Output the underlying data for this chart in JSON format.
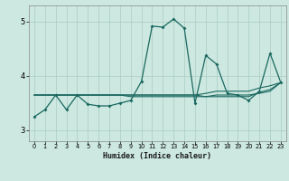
{
  "xlabel": "Humidex (Indice chaleur)",
  "background_color": "#cce8e0",
  "grid_color": "#aaccc4",
  "line_color": "#1a6860",
  "xlim": [
    -0.5,
    23.5
  ],
  "ylim": [
    2.8,
    5.3
  ],
  "yticks": [
    3,
    4,
    5
  ],
  "xticks": [
    0,
    1,
    2,
    3,
    4,
    5,
    6,
    7,
    8,
    9,
    10,
    11,
    12,
    13,
    14,
    15,
    16,
    17,
    18,
    19,
    20,
    21,
    22,
    23
  ],
  "line1_x": [
    0,
    1,
    2,
    3,
    4,
    5,
    6,
    7,
    8,
    9,
    10,
    11,
    12,
    13,
    14,
    15,
    16,
    17,
    18,
    19,
    20,
    21,
    22,
    23
  ],
  "line1_y": [
    3.25,
    3.38,
    3.65,
    3.38,
    3.65,
    3.48,
    3.45,
    3.45,
    3.5,
    3.55,
    3.9,
    4.92,
    4.9,
    5.05,
    4.88,
    3.5,
    4.38,
    4.22,
    3.68,
    3.65,
    3.55,
    3.72,
    4.42,
    3.88
  ],
  "line2_x": [
    0,
    1,
    2,
    3,
    4,
    5,
    6,
    7,
    8,
    9,
    10,
    11,
    12,
    13,
    14,
    15,
    16,
    17,
    18,
    19,
    20,
    21,
    22,
    23
  ],
  "line2_y": [
    3.65,
    3.65,
    3.65,
    3.65,
    3.65,
    3.65,
    3.65,
    3.65,
    3.65,
    3.65,
    3.65,
    3.65,
    3.65,
    3.65,
    3.65,
    3.65,
    3.68,
    3.72,
    3.72,
    3.72,
    3.72,
    3.78,
    3.82,
    3.88
  ],
  "line3_x": [
    0,
    1,
    2,
    3,
    4,
    5,
    6,
    7,
    8,
    9,
    10,
    11,
    12,
    13,
    14,
    15,
    16,
    17,
    18,
    19,
    20,
    21,
    22,
    23
  ],
  "line3_y": [
    3.65,
    3.65,
    3.65,
    3.65,
    3.65,
    3.65,
    3.65,
    3.65,
    3.65,
    3.62,
    3.62,
    3.62,
    3.62,
    3.62,
    3.62,
    3.62,
    3.62,
    3.65,
    3.65,
    3.65,
    3.65,
    3.68,
    3.72,
    3.88
  ],
  "line4_x": [
    0,
    1,
    2,
    3,
    4,
    5,
    6,
    7,
    8,
    9,
    10,
    11,
    12,
    13,
    14,
    15,
    16,
    17,
    18,
    19,
    20,
    21,
    22,
    23
  ],
  "line4_y": [
    3.65,
    3.65,
    3.65,
    3.65,
    3.65,
    3.65,
    3.65,
    3.65,
    3.65,
    3.65,
    3.65,
    3.65,
    3.65,
    3.65,
    3.65,
    3.65,
    3.62,
    3.62,
    3.62,
    3.62,
    3.62,
    3.7,
    3.75,
    3.88
  ]
}
